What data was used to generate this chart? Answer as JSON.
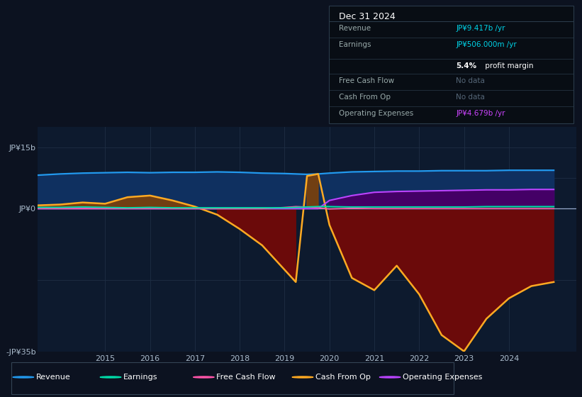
{
  "bg_color": "#0c1220",
  "chart_bg": "#0d1a2e",
  "ylim": [
    -35,
    20
  ],
  "xlim": [
    2013.5,
    2025.5
  ],
  "ytick_positions": [
    -35,
    0,
    15
  ],
  "ytick_labels": [
    "-JP¥35b",
    "JP¥0",
    "JP¥15b"
  ],
  "xticks": [
    2015,
    2016,
    2017,
    2018,
    2019,
    2020,
    2021,
    2022,
    2023,
    2024
  ],
  "legend": [
    {
      "label": "Revenue",
      "color": "#2299ee"
    },
    {
      "label": "Earnings",
      "color": "#00ddaa"
    },
    {
      "label": "Free Cash Flow",
      "color": "#ff55aa"
    },
    {
      "label": "Cash From Op",
      "color": "#ffaa22"
    },
    {
      "label": "Operating Expenses",
      "color": "#bb44ff"
    }
  ],
  "years": [
    2013.5,
    2014.0,
    2014.5,
    2015.0,
    2015.5,
    2016.0,
    2016.5,
    2017.0,
    2017.5,
    2018.0,
    2018.5,
    2019.0,
    2019.25,
    2019.5,
    2019.75,
    2020.0,
    2020.5,
    2021.0,
    2021.5,
    2022.0,
    2022.5,
    2023.0,
    2023.5,
    2024.0,
    2024.5,
    2025.0
  ],
  "revenue": [
    8.2,
    8.5,
    8.7,
    8.8,
    8.9,
    8.8,
    8.9,
    8.9,
    9.0,
    8.9,
    8.7,
    8.6,
    8.5,
    8.4,
    8.5,
    8.7,
    9.0,
    9.1,
    9.2,
    9.2,
    9.3,
    9.3,
    9.3,
    9.4,
    9.4,
    9.4
  ],
  "earnings": [
    0.3,
    0.3,
    0.4,
    0.3,
    0.2,
    0.3,
    0.2,
    0.2,
    0.2,
    0.2,
    0.2,
    0.2,
    0.3,
    0.4,
    0.5,
    0.5,
    0.4,
    0.4,
    0.4,
    0.4,
    0.4,
    0.4,
    0.5,
    0.5,
    0.5,
    0.5
  ],
  "cash_from_op": [
    0.8,
    1.0,
    1.5,
    1.2,
    2.8,
    3.2,
    2.0,
    0.5,
    -1.5,
    -5.0,
    -9.0,
    -15.0,
    -18.0,
    8.0,
    8.5,
    -4.0,
    -17.0,
    -20.0,
    -14.0,
    -21.0,
    -31.0,
    -35.0,
    -27.0,
    -22.0,
    -19.0,
    -18.0
  ],
  "operating_expenses": [
    0.0,
    0.0,
    0.0,
    0.0,
    0.0,
    0.0,
    0.0,
    0.0,
    0.0,
    0.0,
    0.0,
    0.0,
    0.0,
    0.0,
    0.0,
    2.0,
    3.2,
    4.0,
    4.2,
    4.3,
    4.4,
    4.5,
    4.6,
    4.6,
    4.7,
    4.7
  ],
  "free_cash_flow": [
    0.0,
    0.0,
    0.0,
    0.0,
    0.0,
    0.0,
    0.0,
    0.0,
    0.0,
    0.0,
    0.0,
    0.3,
    0.5,
    0.4,
    0.2,
    -0.1,
    0.1,
    0.0,
    0.0,
    0.0,
    0.0,
    0.0,
    0.0,
    0.0,
    0.0,
    0.0
  ],
  "revenue_fill": "#0f3060",
  "revenue_line": "#2299ee",
  "earnings_fill": "#115544",
  "earnings_line": "#00ddaa",
  "cash_fill_neg": "#6b0a0a",
  "cash_fill_pos": "#8b4400",
  "cash_line": "#ffaa22",
  "opex_fill": "#440066",
  "opex_line": "#bb44ff",
  "fcf_fill": "#882244",
  "fcf_line": "#ff55aa",
  "zero_line_color": "#99aacc",
  "grid_color": "#1e2e44",
  "text_color": "#aabbcc",
  "box_bg": "#080d14",
  "box_border": "#2a3a4a"
}
